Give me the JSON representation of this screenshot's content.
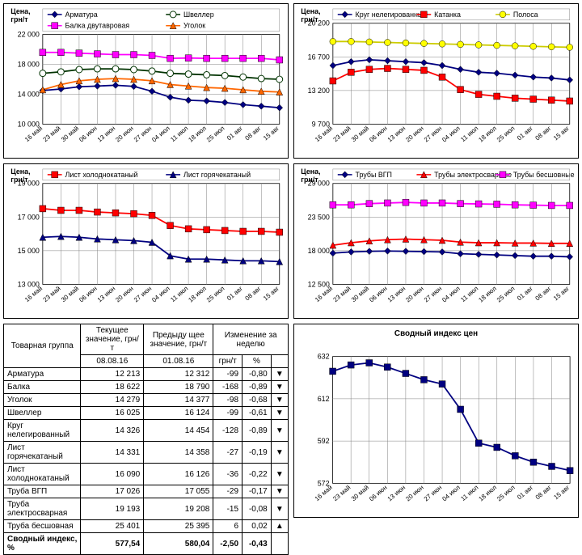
{
  "axis_label": "Цена, грн/т",
  "x_labels": [
    "16 май",
    "23 май",
    "30 май",
    "06 июн",
    "13 июн",
    "20 июн",
    "27 июн",
    "04 июл",
    "11 июл",
    "18 июл",
    "25 июл",
    "01 авг",
    "08 авг",
    "15 авг"
  ],
  "chart_colors": {
    "grid": "#7f7f7f",
    "axis": "#000000",
    "text": "#000000",
    "bg": "#ffffff"
  },
  "chart1": {
    "ylim": [
      10000,
      22000
    ],
    "ytick_step": 4000,
    "series": [
      {
        "name": "Арматура",
        "color": "#000080",
        "marker": "diamond",
        "values": [
          14500,
          14700,
          15000,
          15100,
          15200,
          15050,
          14400,
          13600,
          13200,
          13100,
          12900,
          12600,
          12400,
          12200
        ]
      },
      {
        "name": "Швеллер",
        "color": "#003300",
        "marker": "circle_open",
        "values": [
          16800,
          17000,
          17300,
          17400,
          17400,
          17300,
          17100,
          16800,
          16700,
          16600,
          16500,
          16300,
          16100,
          16000
        ]
      },
      {
        "name": "Балка двутавровая",
        "color": "#ff00ff",
        "marker": "square",
        "values": [
          19600,
          19600,
          19500,
          19400,
          19300,
          19300,
          19200,
          18800,
          18850,
          18800,
          18800,
          18800,
          18800,
          18600
        ]
      },
      {
        "name": "Уголок",
        "color": "#ff6600",
        "marker": "triangle",
        "values": [
          14600,
          15300,
          15800,
          16000,
          16100,
          16000,
          15800,
          15300,
          15100,
          14900,
          14800,
          14600,
          14400,
          14300
        ]
      }
    ]
  },
  "chart2": {
    "ylim": [
      9700,
      20200
    ],
    "yticks": [
      9700,
      13200,
      16700,
      20200
    ],
    "series": [
      {
        "name": "Круг нелегированный",
        "color": "#000080",
        "marker": "diamond",
        "values": [
          15800,
          16200,
          16400,
          16300,
          16200,
          16100,
          15800,
          15400,
          15100,
          15000,
          14800,
          14600,
          14500,
          14300
        ]
      },
      {
        "name": "Катанка",
        "color": "#ff0000",
        "marker": "square",
        "values": [
          14200,
          15100,
          15400,
          15500,
          15400,
          15300,
          14600,
          13300,
          12800,
          12600,
          12400,
          12300,
          12200,
          12100
        ]
      },
      {
        "name": "Полоса",
        "color": "#cccc00",
        "fill": "#ffff00",
        "marker": "circle",
        "values": [
          18300,
          18300,
          18250,
          18200,
          18150,
          18100,
          18050,
          18000,
          17950,
          17900,
          17850,
          17800,
          17750,
          17700
        ]
      }
    ]
  },
  "chart3": {
    "ylim": [
      13000,
      19000
    ],
    "ytick_step": 2000,
    "series": [
      {
        "name": "Лист холоднокатаный",
        "color": "#ff0000",
        "marker": "square",
        "values": [
          17500,
          17400,
          17400,
          17300,
          17250,
          17200,
          17100,
          16500,
          16300,
          16250,
          16200,
          16150,
          16150,
          16100
        ]
      },
      {
        "name": "Лист горячекатаный",
        "color": "#000080",
        "marker": "triangle",
        "values": [
          15800,
          15850,
          15800,
          15700,
          15650,
          15600,
          15500,
          14700,
          14500,
          14500,
          14450,
          14400,
          14400,
          14350
        ]
      }
    ]
  },
  "chart4": {
    "ylim": [
      12500,
      29000
    ],
    "yticks": [
      12500,
      18000,
      23500,
      29000
    ],
    "series": [
      {
        "name": "Трубы ВГП",
        "color": "#000080",
        "marker": "diamond",
        "values": [
          17600,
          17800,
          17900,
          17950,
          17900,
          17850,
          17800,
          17500,
          17400,
          17300,
          17200,
          17100,
          17100,
          17000
        ]
      },
      {
        "name": "Трубы электросварные",
        "color": "#ff0000",
        "marker": "triangle",
        "values": [
          18900,
          19300,
          19600,
          19800,
          19900,
          19800,
          19700,
          19400,
          19300,
          19300,
          19250,
          19250,
          19200,
          19200
        ]
      },
      {
        "name": "Трубы бесшовные",
        "color": "#ff00ff",
        "marker": "square",
        "values": [
          25500,
          25500,
          25700,
          25800,
          25900,
          25800,
          25800,
          25700,
          25650,
          25600,
          25500,
          25450,
          25400,
          25400
        ]
      }
    ]
  },
  "chart5": {
    "title": "Сводный индекс цен",
    "ylim": [
      572,
      632
    ],
    "ytick_step": 20,
    "series": [
      {
        "name": "Индекс",
        "color": "#000080",
        "marker": "square",
        "values": [
          625,
          628,
          629,
          627,
          624,
          621,
          619,
          607,
          591,
          589,
          585,
          582,
          580,
          578
        ]
      }
    ]
  },
  "table": {
    "headers": {
      "group": "Товарная группа",
      "current": "Текущее значение, грн/т",
      "prev": "Предыду щее значение, грн/т",
      "change": "Изменение за неделю",
      "date_cur": "08.08.16",
      "date_prev": "01.08.16",
      "unit": "грн/т",
      "pct": "%"
    },
    "rows": [
      {
        "label": "Арматура",
        "cur": "12 213",
        "prev": "12 312",
        "d": "-99",
        "p": "-0,80",
        "arrow": "▼"
      },
      {
        "label": "Балка",
        "cur": "18 622",
        "prev": "18 790",
        "d": "-168",
        "p": "-0,89",
        "arrow": "▼"
      },
      {
        "label": "Уголок",
        "cur": "14 279",
        "prev": "14 377",
        "d": "-98",
        "p": "-0,68",
        "arrow": "▼"
      },
      {
        "label": "Швеллер",
        "cur": "16 025",
        "prev": "16 124",
        "d": "-99",
        "p": "-0,61",
        "arrow": "▼"
      },
      {
        "label": "Круг нелегированный",
        "cur": "14 326",
        "prev": "14 454",
        "d": "-128",
        "p": "-0,89",
        "arrow": "▼"
      },
      {
        "label": "Лист горячекатаный",
        "cur": "14 331",
        "prev": "14 358",
        "d": "-27",
        "p": "-0,19",
        "arrow": "▼"
      },
      {
        "label": "Лист холоднокатаный",
        "cur": "16 090",
        "prev": "16 126",
        "d": "-36",
        "p": "-0,22",
        "arrow": "▼"
      },
      {
        "label": "Труба ВГП",
        "cur": "17 026",
        "prev": "17 055",
        "d": "-29",
        "p": "-0,17",
        "arrow": "▼"
      },
      {
        "label": "Труба электросварная",
        "cur": "19 193",
        "prev": "19 208",
        "d": "-15",
        "p": "-0,08",
        "arrow": "▼"
      },
      {
        "label": "Труба бесшовная",
        "cur": "25 401",
        "prev": "25 395",
        "d": "6",
        "p": "0,02",
        "arrow": "▲"
      },
      {
        "label": "Сводный индекс, %",
        "cur": "577,54",
        "prev": "580,04",
        "d": "-2,50",
        "p": "-0,43",
        "arrow": "",
        "bold": true
      }
    ]
  }
}
